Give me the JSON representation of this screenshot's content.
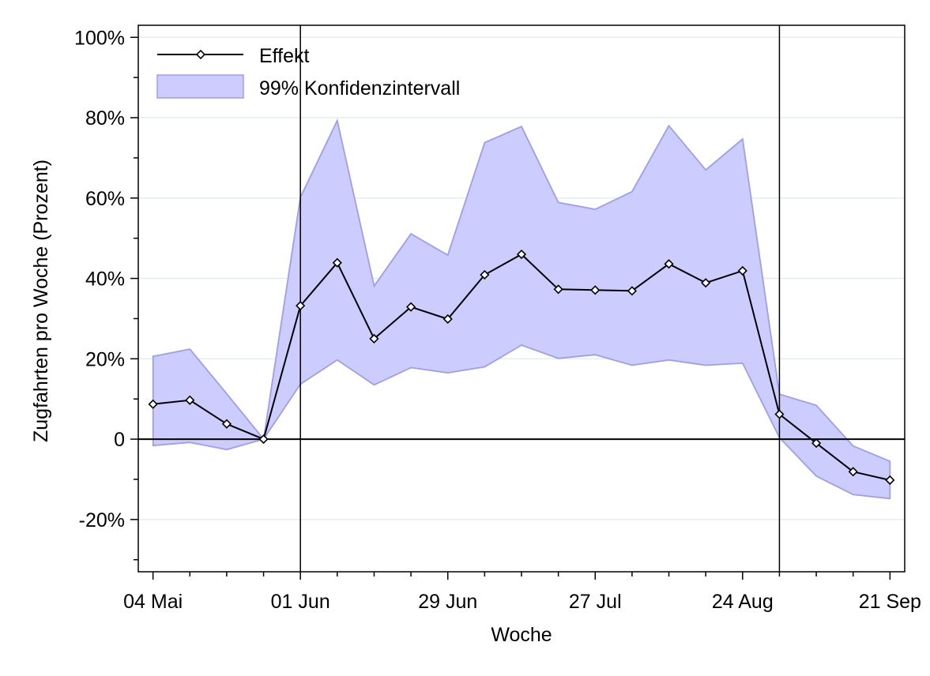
{
  "chart_data": {
    "type": "line",
    "title": "",
    "xlabel": "Woche",
    "ylabel": "Zugfahrten pro Woche (Prozent)",
    "ylim": [
      -0.33,
      1.03
    ],
    "xlim": [
      -0.4,
      20.4
    ],
    "grid": true,
    "legend_position": "top-left",
    "y_ticks": [
      {
        "value": 1.0,
        "label": "100%"
      },
      {
        "value": 0.8,
        "label": "80%"
      },
      {
        "value": 0.6,
        "label": "60%"
      },
      {
        "value": 0.4,
        "label": "40%"
      },
      {
        "value": 0.2,
        "label": "20%"
      },
      {
        "value": 0.0,
        "label": "0"
      },
      {
        "value": -0.2,
        "label": "-20%"
      }
    ],
    "y_minor_ticks": [
      0.9,
      0.7,
      0.5,
      0.3,
      0.1,
      -0.1,
      -0.3
    ],
    "x_ticks": [
      {
        "index": 0,
        "label": "04 Mai"
      },
      {
        "index": 4,
        "label": "01 Jun"
      },
      {
        "index": 8,
        "label": "29 Jun"
      },
      {
        "index": 12,
        "label": "27 Jul"
      },
      {
        "index": 16,
        "label": "24 Aug"
      },
      {
        "index": 20,
        "label": "21 Sep"
      }
    ],
    "x_minor_ticks": [
      1,
      2,
      3,
      5,
      6,
      7,
      9,
      10,
      11,
      13,
      14,
      15,
      17,
      18,
      19
    ],
    "vertical_lines": [
      4,
      17
    ],
    "zero_line": 0,
    "series": [
      {
        "name": "Effekt",
        "kind": "line-marker",
        "color": "#000000",
        "marker": "diamond",
        "values": [
          0.087,
          0.097,
          0.038,
          0.0,
          0.332,
          0.439,
          0.25,
          0.329,
          0.299,
          0.409,
          0.46,
          0.373,
          0.371,
          0.369,
          0.436,
          0.389,
          0.419,
          0.062,
          -0.01,
          -0.081,
          -0.102
        ]
      },
      {
        "name": "99% Konfidenzintervall",
        "kind": "band",
        "fill": "#ccccff",
        "stroke": "#9d9df2",
        "upper": [
          0.206,
          0.224,
          0.113,
          0.0,
          0.602,
          0.793,
          0.381,
          0.511,
          0.458,
          0.738,
          0.778,
          0.589,
          0.572,
          0.616,
          0.78,
          0.67,
          0.747,
          0.112,
          0.084,
          -0.017,
          -0.055
        ],
        "lower": [
          -0.016,
          -0.008,
          -0.026,
          0.0,
          0.137,
          0.197,
          0.135,
          0.178,
          0.165,
          0.18,
          0.234,
          0.201,
          0.21,
          0.184,
          0.197,
          0.184,
          0.189,
          0.004,
          -0.092,
          -0.138,
          -0.148
        ]
      }
    ]
  }
}
